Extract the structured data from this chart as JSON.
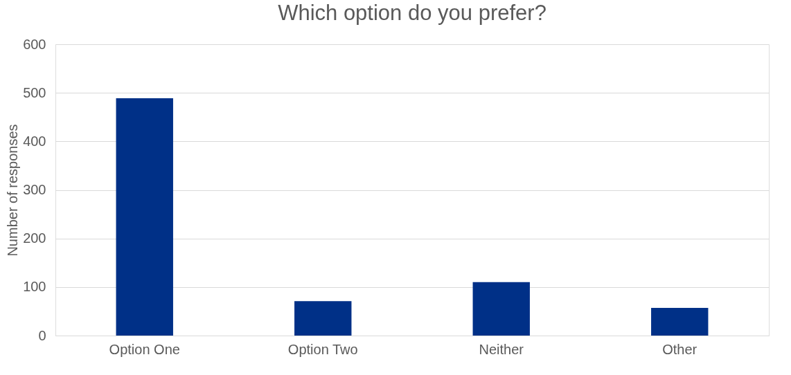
{
  "chart_data": {
    "type": "bar",
    "title": "Which option do you prefer?",
    "ylabel": "Number of responses",
    "categories": [
      "Option One",
      "Option Two",
      "Neither",
      "Other"
    ],
    "values": [
      489,
      71,
      110,
      57
    ],
    "color": "#003087",
    "ylim": [
      0,
      600
    ],
    "yticks": [
      0,
      100,
      200,
      300,
      400,
      500,
      600
    ],
    "grid": "y"
  }
}
